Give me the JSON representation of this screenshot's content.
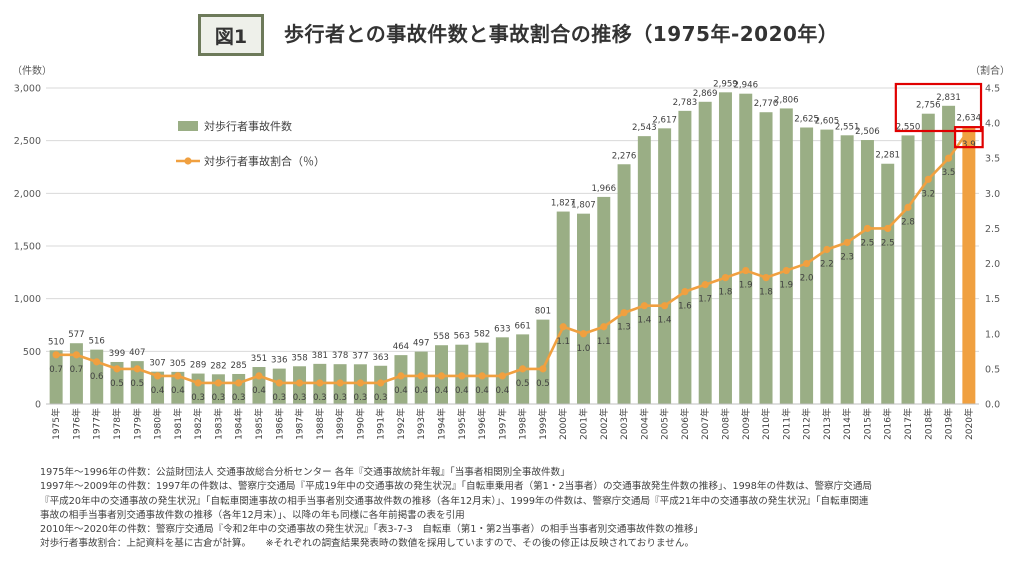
{
  "figure_label": "図1",
  "title": "歩行者との事故件数と事故割合の推移（1975年-2020年）",
  "chart_data": {
    "type": "bar+line",
    "left_axis": {
      "label": "（件数）",
      "range": [
        0,
        3000
      ],
      "ticks": [
        "0",
        "500",
        "1,000",
        "1,500",
        "2,000",
        "2,500",
        "3,000"
      ]
    },
    "right_axis": {
      "label": "（割合）",
      "range": [
        0,
        4.5
      ],
      "ticks": [
        "0.0",
        "0.5",
        "1.0",
        "1.5",
        "2.0",
        "2.5",
        "3.0",
        "3.5",
        "4.0",
        "4.5"
      ]
    },
    "categories": [
      "1975年",
      "1976年",
      "1977年",
      "1978年",
      "1979年",
      "1980年",
      "1981年",
      "1982年",
      "1983年",
      "1984年",
      "1985年",
      "1986年",
      "1987年",
      "1988年",
      "1989年",
      "1990年",
      "1991年",
      "1992年",
      "1993年",
      "1994年",
      "1995年",
      "1996年",
      "1997年",
      "1998年",
      "1999年",
      "2000年",
      "2001年",
      "2002年",
      "2003年",
      "2004年",
      "2005年",
      "2006年",
      "2007年",
      "2008年",
      "2009年",
      "2010年",
      "2011年",
      "2012年",
      "2013年",
      "2014年",
      "2015年",
      "2016年",
      "2017年",
      "2018年",
      "2019年",
      "2020年"
    ],
    "bar_series": {
      "name": "対歩行者事故件数",
      "color": "#9aae85",
      "values": [
        510,
        577,
        516,
        399,
        407,
        307,
        305,
        289,
        282,
        285,
        351,
        336,
        358,
        381,
        378,
        377,
        363,
        464,
        497,
        558,
        563,
        582,
        633,
        661,
        801,
        1827,
        1807,
        1966,
        2276,
        2543,
        2617,
        2783,
        2869,
        2959,
        2946,
        2770,
        2806,
        2625,
        2605,
        2551,
        2506,
        2281,
        2550,
        2756,
        2831,
        2634
      ],
      "labels": [
        "510",
        "577",
        "516",
        "399",
        "407",
        "307",
        "305",
        "289",
        "282",
        "285",
        "351",
        "336",
        "358",
        "381",
        "378",
        "377",
        "363",
        "464",
        "497",
        "558",
        "563",
        "582",
        "633",
        "661",
        "801",
        "1,827",
        "1,807",
        "1,966",
        "2,276",
        "2,543",
        "2,617",
        "2,783",
        "2,869",
        "2,959",
        "2,946",
        "2,770",
        "2,806",
        "2,625",
        "2,605",
        "2,551",
        "2,506",
        "2,281",
        "2,550",
        "2,756",
        "2,831",
        "2,634"
      ],
      "last_bar_color": "#f0a040"
    },
    "line_series": {
      "name": "対歩行者事故割合（％）",
      "color": "#f0a040",
      "values": [
        0.7,
        0.7,
        0.6,
        0.5,
        0.5,
        0.4,
        0.4,
        0.3,
        0.3,
        0.3,
        0.4,
        0.3,
        0.3,
        0.3,
        0.3,
        0.3,
        0.3,
        0.4,
        0.4,
        0.4,
        0.4,
        0.4,
        0.4,
        0.5,
        0.5,
        1.1,
        1.0,
        1.1,
        1.3,
        1.4,
        1.4,
        1.6,
        1.7,
        1.8,
        1.9,
        1.8,
        1.9,
        2.0,
        2.2,
        2.3,
        2.5,
        2.5,
        2.8,
        3.2,
        3.5,
        3.9
      ]
    },
    "highlight_color": "#e00000",
    "legend_position": "upper-left inside plot",
    "grid": "horizontal"
  },
  "notes": [
    "1975年～1996年の件数：公益財団法人 交通事故総合分析センター 各年『交通事故統計年報』「当事者相関別全事故件数」",
    "1997年～2009年の件数：1997年の件数は、警察庁交通局『平成19年中の交通事故の発生状況』「自転車乗用者（第1・2当事者）の交通事故発生件数の推移」、1998年の件数は、警察庁交通局",
    "『平成20年中の交通事故の発生状況』「自転車関連事故の相手当事者別交通事故件数の推移（各年12月末）」、1999年の件数は、警察庁交通局『平成21年中の交通事故の発生状況』「自転車関連",
    "事故の相手当事者別交通事故件数の推移（各年12月末）」、以降の年も同様に各年前掲書の表を引用",
    "2010年～2020年の件数：警察庁交通局『令和2年中の交通事故の発生状況』「表3-7-3　自転車（第1・第2当事者）の相手当事者別交通事故件数の推移」",
    "対歩行者事故割合：上記資料を基に古倉が計算。　　※それぞれの調査結果発表時の数値を採用していますので、その後の修正は反映されておりません。"
  ]
}
